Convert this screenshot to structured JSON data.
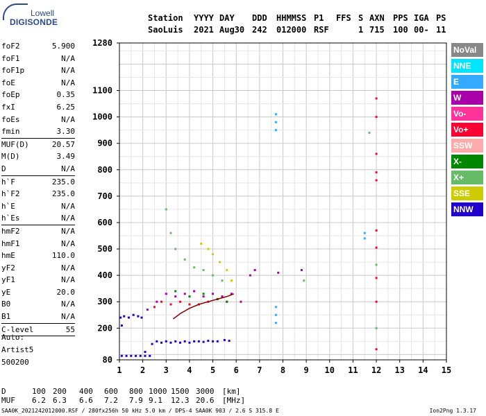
{
  "logo": {
    "line1": "Lowell",
    "line2": "DIGISONDE"
  },
  "header": {
    "labels": [
      "Station",
      "YYYY",
      "DAY",
      "DDD",
      "HHMMSS",
      "P1",
      "FFS",
      "S",
      "AXN",
      "PPS",
      "IGA",
      "PS"
    ],
    "values": [
      "SaoLuis",
      "2021",
      "Aug30",
      "242",
      "012000",
      "RSF",
      "",
      "1",
      "715",
      "100",
      "00-",
      "11"
    ]
  },
  "params": [
    {
      "label": "foF2",
      "value": "5.900"
    },
    {
      "label": "foF1",
      "value": "N/A"
    },
    {
      "label": "foF1p",
      "value": "N/A"
    },
    {
      "label": "foE",
      "value": "N/A"
    },
    {
      "label": "foEp",
      "value": "0.35"
    },
    {
      "label": "fxI",
      "value": "6.25"
    },
    {
      "label": "foEs",
      "value": "N/A"
    },
    {
      "label": "fmin",
      "value": "3.30"
    },
    {
      "label": "MUF(D)",
      "value": "20.57"
    },
    {
      "label": "M(D)",
      "value": "3.49"
    },
    {
      "label": "D",
      "value": "N/A"
    },
    {
      "label": "h`F",
      "value": "235.0"
    },
    {
      "label": "h`F2",
      "value": "235.0"
    },
    {
      "label": "h`E",
      "value": "N/A"
    },
    {
      "label": "h`Es",
      "value": "N/A"
    },
    {
      "label": "hmF2",
      "value": "N/A"
    },
    {
      "label": "hmF1",
      "value": "N/A"
    },
    {
      "label": "hmE",
      "value": "110.0"
    },
    {
      "label": "yF2",
      "value": "N/A"
    },
    {
      "label": "yF1",
      "value": "N/A"
    },
    {
      "label": "yE",
      "value": "20.0"
    },
    {
      "label": "B0",
      "value": "N/A"
    },
    {
      "label": "B1",
      "value": "N/A"
    },
    {
      "label": "C-level",
      "value": "55"
    }
  ],
  "auto": [
    "Auto:",
    "Artist5",
    "500200"
  ],
  "legend": [
    {
      "label": "NoVal",
      "color": "#888888"
    },
    {
      "label": "NNE",
      "color": "#00e5ff"
    },
    {
      "label": "E",
      "color": "#33aaff"
    },
    {
      "label": "W",
      "color": "#aa00aa"
    },
    {
      "label": "Vo-",
      "color": "#ff3399"
    },
    {
      "label": "Vo+",
      "color": "#ff0033"
    },
    {
      "label": "SSW",
      "color": "#ffaaaa"
    },
    {
      "label": "X-",
      "color": "#008800"
    },
    {
      "label": "X+",
      "color": "#66bb66"
    },
    {
      "label": "SSE",
      "color": "#cccc00"
    },
    {
      "label": "NNW",
      "color": "#2200cc"
    }
  ],
  "dmuf": {
    "d_label": "D",
    "d_values": [
      "100",
      "200",
      "400",
      "600",
      "800",
      "1000",
      "1500",
      "3000"
    ],
    "d_unit": "[km]",
    "muf_label": "MUF",
    "muf_values": [
      "6.2",
      "6.3",
      "6.6",
      "7.2",
      "7.9",
      "9.1",
      "12.3",
      "20.6"
    ],
    "muf_unit": "[MHz]"
  },
  "footer": {
    "left": "SAA0K_2021242012000.RSF / 280fx256h 50 kHz 5.0 km / DPS-4 SAA0K 903 / 2.6 S 315.8 E",
    "right": "Ion2Png 1.3.17"
  },
  "chart_data": {
    "type": "scatter",
    "title": "",
    "xlabel": "",
    "ylabel": "",
    "xlim": [
      1,
      15
    ],
    "ylim": [
      80,
      1280
    ],
    "x_ticks": [
      1,
      2,
      3,
      4,
      5,
      6,
      7,
      8,
      9,
      10,
      11,
      12,
      13,
      14,
      15
    ],
    "y_ticks": [
      80,
      200,
      300,
      400,
      500,
      600,
      700,
      800,
      900,
      1000,
      1100,
      1280
    ],
    "grid": true,
    "series": [
      {
        "color": "#2200cc",
        "points": [
          [
            1.1,
            95
          ],
          [
            1.3,
            95
          ],
          [
            1.5,
            95
          ],
          [
            1.7,
            95
          ],
          [
            1.9,
            95
          ],
          [
            2.1,
            95
          ],
          [
            2.3,
            95
          ],
          [
            1.05,
            240
          ],
          [
            1.2,
            245
          ],
          [
            1.4,
            240
          ],
          [
            1.6,
            250
          ],
          [
            1.8,
            245
          ],
          [
            1.95,
            240
          ],
          [
            1.1,
            210
          ],
          [
            2.1,
            110
          ],
          [
            2.4,
            140
          ],
          [
            2.6,
            150
          ],
          [
            2.8,
            145
          ],
          [
            3.0,
            150
          ],
          [
            3.2,
            145
          ],
          [
            3.4,
            150
          ],
          [
            3.6,
            145
          ],
          [
            3.8,
            150
          ],
          [
            4.0,
            145
          ],
          [
            4.2,
            150
          ],
          [
            4.4,
            150
          ],
          [
            4.6,
            148
          ],
          [
            4.8,
            152
          ],
          [
            5.0,
            150
          ],
          [
            5.2,
            150
          ],
          [
            5.5,
            155
          ],
          [
            5.7,
            152
          ]
        ]
      },
      {
        "color": "#aa00aa",
        "points": [
          [
            2.2,
            270
          ],
          [
            2.6,
            300
          ],
          [
            3.0,
            330
          ],
          [
            3.4,
            320
          ],
          [
            3.8,
            330
          ],
          [
            4.2,
            340
          ],
          [
            4.6,
            320
          ],
          [
            5.0,
            330
          ],
          [
            5.4,
            320
          ],
          [
            5.8,
            330
          ],
          [
            6.2,
            300
          ],
          [
            6.6,
            400
          ],
          [
            6.8,
            420
          ],
          [
            7.8,
            410
          ],
          [
            8.8,
            420
          ]
        ]
      },
      {
        "color": "#ff0033",
        "points": [
          [
            2.5,
            280
          ],
          [
            2.8,
            300
          ],
          [
            3.2,
            290
          ],
          [
            3.6,
            300
          ],
          [
            4.0,
            290
          ],
          [
            4.4,
            290
          ],
          [
            4.8,
            300
          ],
          [
            5.2,
            310
          ],
          [
            5.6,
            300
          ],
          [
            12.0,
            1070
          ],
          [
            12.0,
            1000
          ],
          [
            12.0,
            860
          ],
          [
            12.0,
            790
          ],
          [
            12.0,
            760
          ],
          [
            12.0,
            570
          ],
          [
            12.0,
            505
          ],
          [
            12.0,
            390
          ],
          [
            12.0,
            300
          ],
          [
            12.0,
            120
          ]
        ]
      },
      {
        "color": "#33aaff",
        "points": [
          [
            7.7,
            950
          ],
          [
            7.7,
            980
          ],
          [
            7.7,
            1010
          ],
          [
            7.7,
            220
          ],
          [
            7.7,
            250
          ],
          [
            7.7,
            280
          ],
          [
            11.5,
            540
          ],
          [
            11.5,
            560
          ]
        ]
      },
      {
        "color": "#66bb66",
        "points": [
          [
            3.0,
            650
          ],
          [
            3.2,
            560
          ],
          [
            3.4,
            500
          ],
          [
            3.8,
            460
          ],
          [
            4.2,
            430
          ],
          [
            4.6,
            420
          ],
          [
            5.0,
            400
          ],
          [
            5.4,
            380
          ],
          [
            11.7,
            940
          ],
          [
            12.0,
            440
          ],
          [
            12.0,
            200
          ],
          [
            8.9,
            380
          ]
        ]
      },
      {
        "color": "#cccc00",
        "points": [
          [
            4.5,
            520
          ],
          [
            4.8,
            500
          ],
          [
            5.0,
            480
          ],
          [
            5.3,
            450
          ],
          [
            5.6,
            420
          ],
          [
            5.8,
            380
          ]
        ]
      },
      {
        "color": "#008800",
        "points": [
          [
            3.4,
            340
          ],
          [
            4.0,
            320
          ],
          [
            4.6,
            330
          ],
          [
            5.2,
            310
          ],
          [
            5.6,
            300
          ]
        ]
      }
    ],
    "trace": {
      "color": "#8b0000",
      "x": [
        3.3,
        3.6,
        4.0,
        4.4,
        4.8,
        5.2,
        5.6,
        5.9
      ],
      "y": [
        235,
        255,
        275,
        290,
        300,
        310,
        320,
        330
      ]
    }
  }
}
